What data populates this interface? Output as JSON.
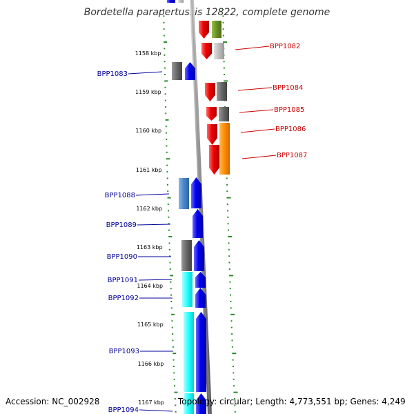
{
  "title": "Bordetella parapertussis 12822, complete genome",
  "footer": {
    "accession": "Accession: NC_002928",
    "topology": "Topology: circular; Length: 4,773,551 bp; Genes: 4,249"
  },
  "colors": {
    "forward_label": "#cc0000",
    "reverse_label": "#000099",
    "tick": "#2a8a2a",
    "backbone": "#8c8c8c",
    "red": "#ee0000",
    "blue": "#0000ee",
    "cyan": "#22ffff",
    "gray": "#666666",
    "lightgray": "#bbbbbb",
    "olive": "#6b8e23",
    "orange": "#ff8c00",
    "steelblue": "#4a86c8"
  },
  "kbp_marks": [
    "1158 kbp",
    "1159 kbp",
    "1160 kbp",
    "1161 kbp",
    "1162 kbp",
    "1163 kbp",
    "1164 kbp",
    "1165 kbp",
    "1166 kbp",
    "1167 kbp"
  ],
  "forward_genes": [
    {
      "label": "BPP1082",
      "feature": "red",
      "partner": "lightgray"
    },
    {
      "label": "BPP1084",
      "feature": "red",
      "partner": "gray"
    },
    {
      "label": "BPP1085",
      "feature": "red",
      "partner": "gray"
    },
    {
      "label": "BPP1086",
      "feature": "red",
      "partner": "orange"
    },
    {
      "label": "BPP1087",
      "feature": "red",
      "partner": "orange"
    }
  ],
  "reverse_genes": [
    {
      "label": "BPP1083",
      "feature": "blue",
      "partner": "gray"
    },
    {
      "label": "BPP1088",
      "feature": "blue",
      "partner": "steelblue"
    },
    {
      "label": "BPP1089",
      "feature": "blue",
      "partner": ""
    },
    {
      "label": "BPP1090",
      "feature": "blue",
      "partner": "gray"
    },
    {
      "label": "BPP1091",
      "feature": "blue",
      "partner": "cyan"
    },
    {
      "label": "BPP1092",
      "feature": "blue",
      "partner": "cyan"
    },
    {
      "label": "BPP1093",
      "feature": "blue",
      "partner": "cyan"
    },
    {
      "label": "BPP1094",
      "feature": "blue",
      "partner": "cyan"
    }
  ]
}
